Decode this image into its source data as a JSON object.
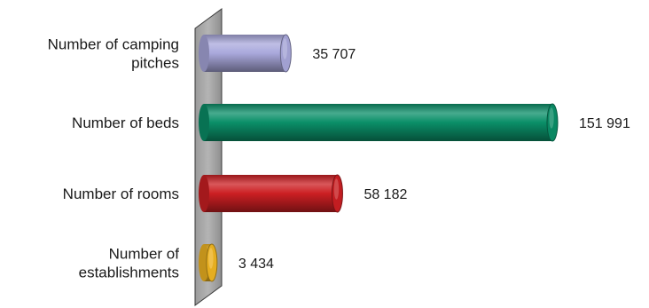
{
  "chart_data": {
    "type": "bar",
    "orientation": "horizontal",
    "style": "3d-cylinder",
    "categories": [
      [
        "Number of camping",
        "pitches"
      ],
      [
        "Number of beds"
      ],
      [
        "Number of rooms"
      ],
      [
        "Number of",
        "establishments"
      ]
    ],
    "values": [
      35707,
      151991,
      58182,
      3434
    ],
    "value_labels": [
      "35 707",
      "151 991",
      "58 182",
      "3 434"
    ],
    "colors": [
      "#a9a8dc",
      "#0a8f68",
      "#cc1f23",
      "#f2b722"
    ],
    "xlim": [
      0,
      151991
    ],
    "grid": false,
    "legend": "none"
  }
}
